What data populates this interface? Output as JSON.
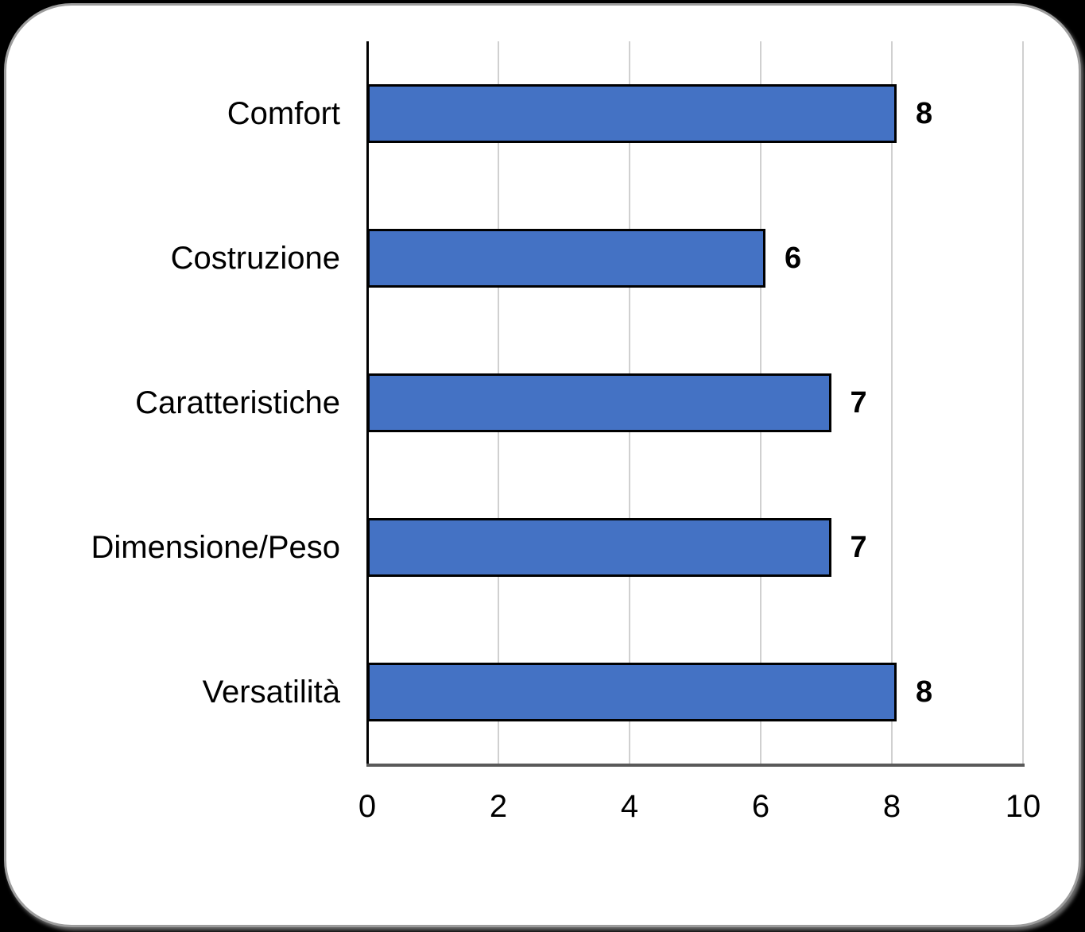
{
  "chart_data": {
    "type": "bar",
    "orientation": "horizontal",
    "title": "",
    "xlabel": "",
    "ylabel": "",
    "categories": [
      "Comfort",
      "Costruzione",
      "Caratteristiche",
      "Dimensione/Peso",
      "Versatilità"
    ],
    "values": [
      8,
      6,
      7,
      7,
      8
    ],
    "value_labels": [
      "8",
      "6",
      "7",
      "7",
      "8"
    ],
    "xlim": [
      0,
      10
    ],
    "x_ticks": [
      0,
      2,
      4,
      6,
      8,
      10
    ],
    "x_tick_labels": [
      "0",
      "2",
      "4",
      "6",
      "8",
      "10"
    ],
    "grid": "vertical-only",
    "legend": "none",
    "bar_color": "#4472C4",
    "bar_border_color": "#000000",
    "gridline_color": "#d0d0d0",
    "y_axis_color": "#000000",
    "x_axis_color": "#595959",
    "card_background": "#ffffff",
    "page_background": "#000000"
  }
}
